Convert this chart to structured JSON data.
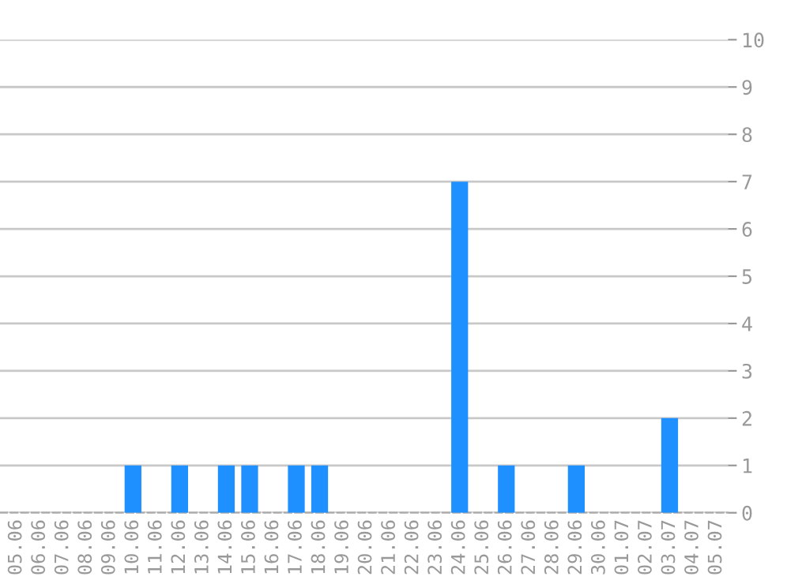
{
  "chart_data": {
    "type": "bar",
    "categories": [
      "05.06",
      "06.06",
      "07.06",
      "08.06",
      "09.06",
      "10.06",
      "11.06",
      "12.06",
      "13.06",
      "14.06",
      "15.06",
      "16.06",
      "17.06",
      "18.06",
      "19.06",
      "20.06",
      "21.06",
      "22.06",
      "23.06",
      "24.06",
      "25.06",
      "26.06",
      "27.06",
      "28.06",
      "29.06",
      "30.06",
      "01.07",
      "02.07",
      "03.07",
      "04.07",
      "05.07"
    ],
    "values": [
      0,
      0,
      0,
      0,
      0,
      1,
      0,
      1,
      0,
      1,
      1,
      0,
      1,
      1,
      0,
      0,
      0,
      0,
      0,
      7,
      0,
      1,
      0,
      0,
      1,
      0,
      0,
      0,
      2,
      0,
      0
    ],
    "color": "#1e90ff",
    "ylim": [
      0,
      10
    ],
    "yticks": [
      0,
      1,
      2,
      3,
      4,
      5,
      6,
      7,
      8,
      9,
      10
    ],
    "grid": "y",
    "legend": false
  }
}
